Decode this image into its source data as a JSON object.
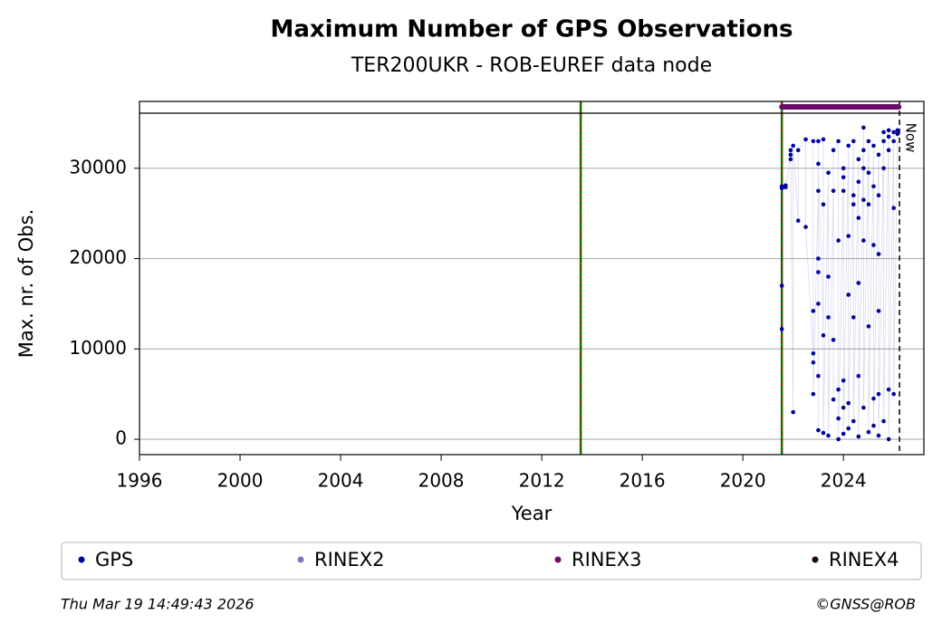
{
  "chart_data": {
    "type": "scatter",
    "title": "Maximum Number of GPS Observations",
    "subtitle": "TER200UKR - ROB-EUREF data node",
    "x_label": "Year",
    "y_label": "Max. nr. of Obs.",
    "xlim": [
      1996,
      2027.2
    ],
    "ylim": [
      -1700,
      37400
    ],
    "xticks": [
      1996,
      2000,
      2004,
      2008,
      2012,
      2016,
      2020,
      2024
    ],
    "yticks": [
      0,
      10000,
      20000,
      30000
    ],
    "grid": true,
    "vlines": [
      2013.55,
      2021.55
    ],
    "hline": 36100,
    "now": {
      "x": 2026.23,
      "label": "Now"
    },
    "series": [
      {
        "name": "GPS",
        "color": "#00009c",
        "x": [
          2021.55,
          2021.55,
          2021.55,
          2021.55,
          2021.7,
          2021.7,
          2021.9,
          2021.9,
          2021.9,
          2022.0,
          2022.0,
          2022.2,
          2022.2,
          2022.5,
          2022.5,
          2022.8,
          2022.8,
          2022.8,
          2022.8,
          2022.8,
          2023.0,
          2023.0,
          2023.0,
          2023.0,
          2023.0,
          2023.0,
          2023.0,
          2023.0,
          2023.2,
          2023.2,
          2023.2,
          2023.2,
          2023.4,
          2023.4,
          2023.4,
          2023.4,
          2023.6,
          2023.6,
          2023.6,
          2023.6,
          2023.8,
          2023.8,
          2023.8,
          2023.8,
          2023.8,
          2024.0,
          2024.0,
          2024.0,
          2024.0,
          2024.0,
          2024.0,
          2024.2,
          2024.2,
          2024.2,
          2024.2,
          2024.2,
          2024.4,
          2024.4,
          2024.4,
          2024.4,
          2024.4,
          2024.6,
          2024.6,
          2024.6,
          2024.6,
          2024.6,
          2024.6,
          2024.8,
          2024.8,
          2024.8,
          2024.8,
          2024.8,
          2024.8,
          2025.0,
          2025.0,
          2025.0,
          2025.0,
          2025.0,
          2025.2,
          2025.2,
          2025.2,
          2025.2,
          2025.2,
          2025.4,
          2025.4,
          2025.4,
          2025.4,
          2025.4,
          2025.4,
          2025.6,
          2025.6,
          2025.6,
          2025.6,
          2025.8,
          2025.8,
          2025.8,
          2025.8,
          2025.8,
          2026.0,
          2026.0,
          2026.0,
          2026.0,
          2026.15,
          2026.15
        ],
        "values": [
          17000,
          12200,
          27800,
          28000,
          28100,
          27900,
          31500,
          32000,
          31000,
          3000,
          32500,
          24200,
          32000,
          33200,
          23500,
          9500,
          8500,
          33000,
          14200,
          5000,
          27500,
          20000,
          18500,
          15000,
          7000,
          1000,
          33000,
          30500,
          11500,
          26000,
          33200,
          700,
          29500,
          18000,
          13500,
          400,
          27500,
          11000,
          4400,
          32000,
          33000,
          22000,
          5500,
          2300,
          0,
          30000,
          29000,
          27500,
          6500,
          3500,
          600,
          32500,
          22500,
          16000,
          4000,
          1200,
          33000,
          27000,
          26000,
          13500,
          2000,
          31000,
          28500,
          24500,
          17300,
          7000,
          300,
          34500,
          32000,
          30000,
          26500,
          22000,
          3500,
          33000,
          29500,
          26000,
          12500,
          800,
          32500,
          28000,
          21500,
          4500,
          1500,
          31500,
          27000,
          20500,
          14200,
          5000,
          400,
          34000,
          33000,
          30000,
          2000,
          34200,
          33500,
          32000,
          5500,
          0,
          34000,
          33000,
          25600,
          5000,
          34200,
          33800
        ]
      },
      {
        "name": "RINEX2",
        "color": "#7b7bb8",
        "x": [],
        "values": []
      },
      {
        "name": "RINEX3",
        "color": "#6b0a6b",
        "x": [
          2021.55,
          2026.2
        ],
        "values": [
          36800,
          36800
        ]
      },
      {
        "name": "RINEX4",
        "color": "#1e0018",
        "x": [],
        "values": []
      }
    ],
    "footer_left": "Thu Mar 19 14:49:43 2026",
    "footer_right": "©GNSS@ROB"
  }
}
